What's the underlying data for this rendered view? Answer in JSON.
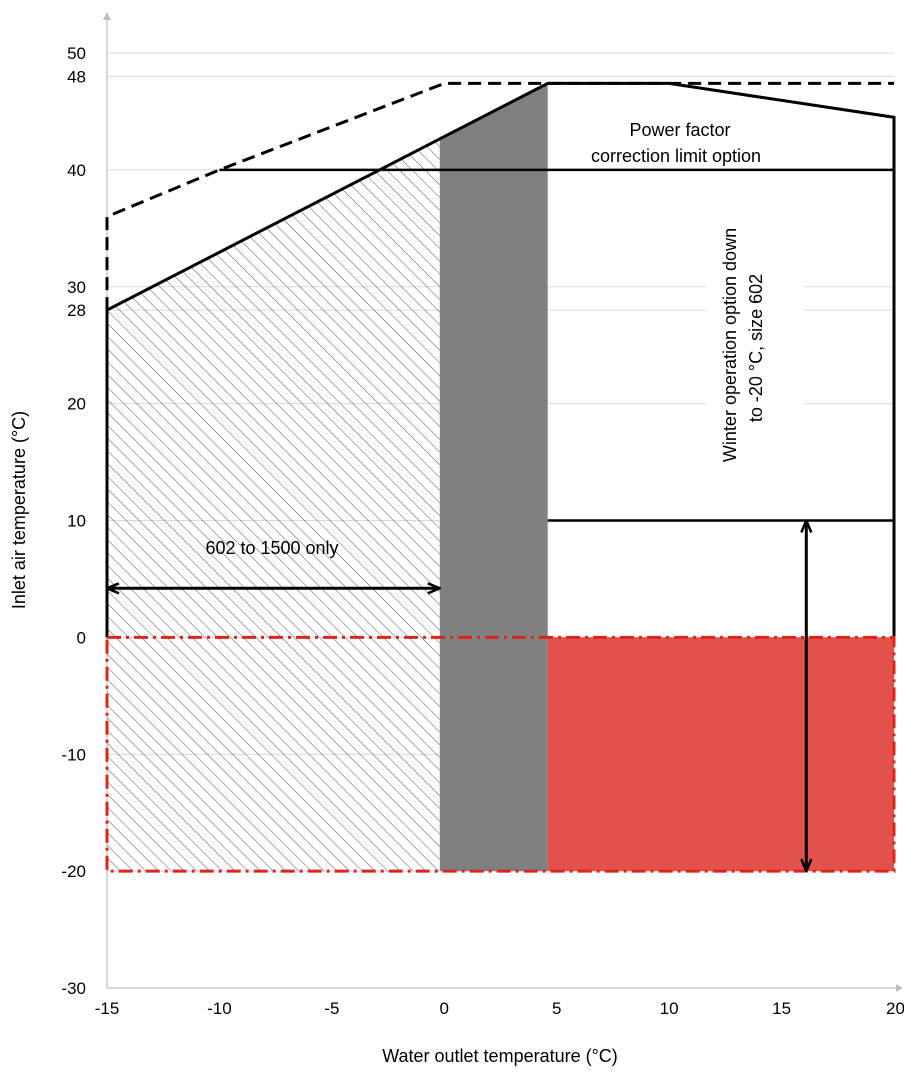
{
  "chart_data": {
    "type": "area",
    "title": "",
    "xlabel": "Water outlet temperature (°C)",
    "ylabel": "Inlet air temperature (°C)",
    "xlim": [
      -15,
      20
    ],
    "ylim": [
      -30,
      50
    ],
    "grid": true,
    "x_ticks": [
      "-15",
      "-10",
      "-5",
      "0",
      "5",
      "10",
      "15",
      "20"
    ],
    "y_ticks": [
      "50",
      "48",
      "40",
      "30",
      "28",
      "20",
      "10",
      "0",
      "-10",
      "-20",
      "-30"
    ],
    "colors": {
      "red_zone": "#E2524A",
      "red_border": "#D9271E",
      "grey_zone": "#808080",
      "hatch": "#595959",
      "grid": "#D9D9D9",
      "axis": "#BFBFBF"
    },
    "regions": {
      "hatched": {
        "polygon": [
          [
            -15,
            -20
          ],
          [
            -15,
            28
          ],
          [
            -0.2,
            42.5
          ],
          [
            -0.2,
            -20
          ]
        ]
      },
      "grey": {
        "polygon": [
          [
            -0.2,
            -20
          ],
          [
            -0.2,
            42.5
          ],
          [
            4.6,
            47.4
          ],
          [
            4.6,
            -20
          ]
        ]
      },
      "red": {
        "polygon": [
          [
            4.6,
            -20
          ],
          [
            4.6,
            0
          ],
          [
            20,
            0
          ],
          [
            20,
            -20
          ]
        ]
      }
    },
    "lines": {
      "solid_envelope": [
        [
          -15,
          0
        ],
        [
          -15,
          28
        ],
        [
          4.6,
          47.4
        ],
        [
          10,
          47.4
        ],
        [
          20,
          44.5
        ],
        [
          20,
          0
        ]
      ],
      "dashed_envelope": [
        [
          -15,
          28
        ],
        [
          -15,
          36
        ],
        [
          -10,
          40
        ],
        [
          0,
          47.4
        ],
        [
          20,
          47.4
        ]
      ],
      "power_factor_limit": [
        [
          -10,
          40
        ],
        [
          20,
          40
        ]
      ],
      "winter_line": [
        [
          4.6,
          10
        ],
        [
          20,
          10
        ]
      ],
      "red_dashdot_border": [
        [
          -15,
          0
        ],
        [
          20,
          0
        ],
        [
          20,
          -20
        ],
        [
          -15,
          -20
        ],
        [
          -15,
          0
        ]
      ],
      "horizontal_arrow": [
        [
          -15,
          4.2
        ],
        [
          -0.2,
          4.2
        ]
      ],
      "vertical_arrow": [
        [
          16.1,
          10
        ],
        [
          16.1,
          -20
        ]
      ]
    },
    "annotations": {
      "power_factor_line1": "Power factor",
      "power_factor_line2": "correction limit option",
      "winter_line1": "Winter operation option down",
      "winter_line2": "to -20 °C, size 602",
      "range_label": "602 to 1500 only"
    }
  }
}
